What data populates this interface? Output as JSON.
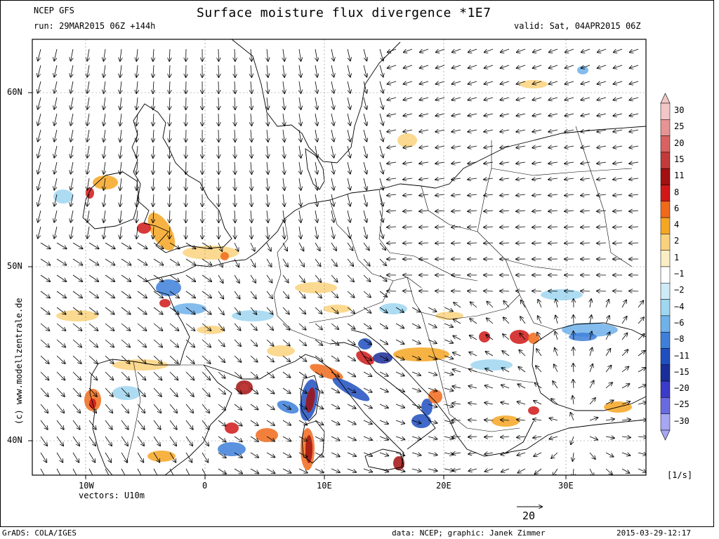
{
  "header": {
    "model": "NCEP GFS",
    "run": "run: 29MAR2015 06Z +144h",
    "title": "Surface moisture flux divergence *1E7",
    "valid": "valid: Sat, 04APR2015 06Z"
  },
  "axes": {
    "lat_labels": [
      "60N",
      "50N",
      "40N"
    ],
    "lon_labels": [
      "10W",
      "0",
      "10E",
      "20E",
      "30E"
    ],
    "lat_values": [
      60,
      50,
      40
    ],
    "lon_values": [
      -10,
      0,
      10,
      20,
      30
    ],
    "lon_range": [
      -14.5,
      37
    ],
    "lat_range": [
      38,
      63
    ]
  },
  "colorbar": {
    "levels": [
      "30",
      "25",
      "20",
      "15",
      "11",
      "8",
      "6",
      "4",
      "2",
      "1",
      "−1",
      "−2",
      "−4",
      "−6",
      "−8",
      "−11",
      "−15",
      "−20",
      "−25",
      "−30"
    ],
    "colors": [
      "#f2c6c6",
      "#e89393",
      "#d96161",
      "#c23a3a",
      "#a31010",
      "#d01818",
      "#f06a1a",
      "#f5a623",
      "#fad27d",
      "#fbeec4",
      "#ffffff",
      "#cfeaf7",
      "#9fd6f0",
      "#6fb2ea",
      "#3d7fd9",
      "#1f4fbf",
      "#1a2d9a",
      "#3a3acb",
      "#6a6ae0",
      "#a6a6f2"
    ],
    "unit": "[1/s]"
  },
  "footer": {
    "vectors": "vectors: U10m",
    "ref_vector": "20",
    "grads": "GrADS: COLA/IGES",
    "credit": "data: NCEP; graphic: Janek Zimmer",
    "timestamp": "2015-03-29-12:17",
    "watermark": "(c)  www.modellzentrale.de"
  }
}
